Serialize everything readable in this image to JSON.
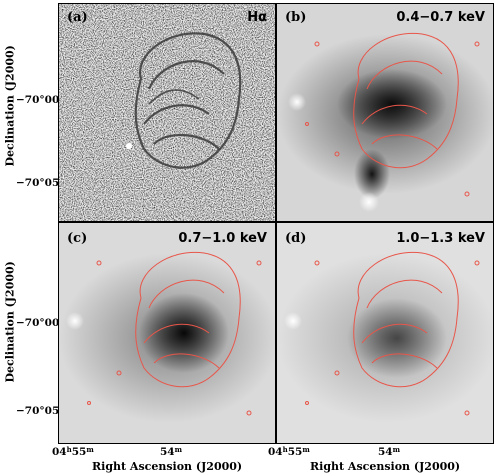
{
  "figure": {
    "panels": [
      {
        "label": "(a)",
        "band": "Hα"
      },
      {
        "label": "(b)",
        "band": "0.4−0.7 keV"
      },
      {
        "label": "(c)",
        "band": "0.7−1.0 keV"
      },
      {
        "label": "(d)",
        "band": "1.0−1.3 keV"
      }
    ],
    "y_axis_label": "Declination (J2000)",
    "x_axis_label": "Right Ascension (J2000)",
    "y_ticks": [
      "−70°00′",
      "−70°05′"
    ],
    "x_ticks": [
      {
        "main": "04",
        "sup1": "h",
        "mid": "55",
        "sup2": "m"
      },
      {
        "main": "54",
        "sup1": "",
        "mid": "",
        "sup2": "m"
      }
    ],
    "contour_color": "#e8564a"
  }
}
